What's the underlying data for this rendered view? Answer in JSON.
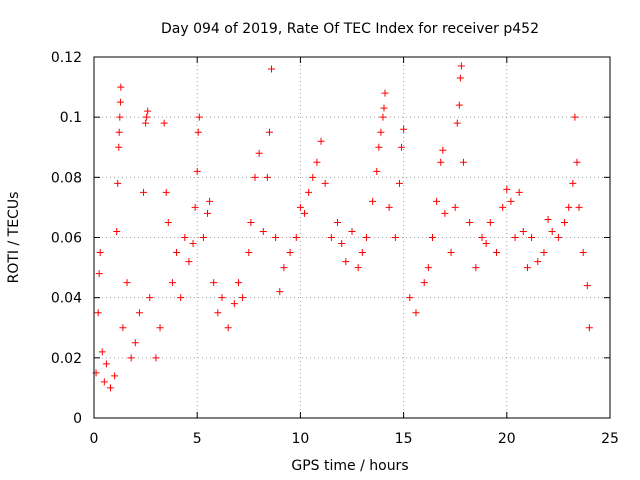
{
  "chart_data": {
    "type": "scatter",
    "title": "Day 094 of 2019, Rate Of TEC Index for receiver p452",
    "xlabel": "GPS time / hours",
    "ylabel": "ROTI / TECUs",
    "xlim": [
      0,
      25
    ],
    "ylim": [
      0,
      0.12
    ],
    "xticks": [
      0,
      5,
      10,
      15,
      20,
      25
    ],
    "xtick_labels": [
      "0",
      "5",
      "10",
      "15",
      "20",
      "25"
    ],
    "yticks": [
      0,
      0.02,
      0.04,
      0.06,
      0.08,
      0.1,
      0.12
    ],
    "ytick_labels": [
      "0",
      "0.02",
      "0.04",
      "0.06",
      "0.08",
      "0.1",
      "0.12"
    ],
    "grid": true,
    "marker": "+",
    "color": "#ff0000",
    "series": [
      {
        "name": "ROTI",
        "points": [
          [
            0.1,
            0.015
          ],
          [
            0.2,
            0.035
          ],
          [
            0.25,
            0.048
          ],
          [
            0.3,
            0.055
          ],
          [
            0.4,
            0.022
          ],
          [
            0.5,
            0.012
          ],
          [
            0.6,
            0.018
          ],
          [
            0.8,
            0.01
          ],
          [
            1.0,
            0.014
          ],
          [
            1.1,
            0.062
          ],
          [
            1.15,
            0.078
          ],
          [
            1.2,
            0.09
          ],
          [
            1.22,
            0.095
          ],
          [
            1.25,
            0.1
          ],
          [
            1.28,
            0.105
          ],
          [
            1.3,
            0.11
          ],
          [
            1.4,
            0.03
          ],
          [
            1.6,
            0.045
          ],
          [
            1.8,
            0.02
          ],
          [
            2.0,
            0.025
          ],
          [
            2.2,
            0.035
          ],
          [
            2.4,
            0.075
          ],
          [
            2.5,
            0.098
          ],
          [
            2.55,
            0.1
          ],
          [
            2.6,
            0.102
          ],
          [
            2.7,
            0.04
          ],
          [
            3.0,
            0.02
          ],
          [
            3.2,
            0.03
          ],
          [
            3.4,
            0.098
          ],
          [
            3.5,
            0.075
          ],
          [
            3.6,
            0.065
          ],
          [
            3.8,
            0.045
          ],
          [
            4.0,
            0.055
          ],
          [
            4.2,
            0.04
          ],
          [
            4.4,
            0.06
          ],
          [
            4.6,
            0.052
          ],
          [
            4.8,
            0.058
          ],
          [
            4.9,
            0.07
          ],
          [
            5.0,
            0.082
          ],
          [
            5.05,
            0.095
          ],
          [
            5.1,
            0.1
          ],
          [
            5.3,
            0.06
          ],
          [
            5.5,
            0.068
          ],
          [
            5.6,
            0.072
          ],
          [
            5.8,
            0.045
          ],
          [
            6.0,
            0.035
          ],
          [
            6.2,
            0.04
          ],
          [
            6.5,
            0.03
          ],
          [
            6.8,
            0.038
          ],
          [
            7.0,
            0.045
          ],
          [
            7.2,
            0.04
          ],
          [
            7.5,
            0.055
          ],
          [
            7.6,
            0.065
          ],
          [
            7.8,
            0.08
          ],
          [
            8.0,
            0.088
          ],
          [
            8.2,
            0.062
          ],
          [
            8.4,
            0.08
          ],
          [
            8.5,
            0.095
          ],
          [
            8.6,
            0.116
          ],
          [
            8.8,
            0.06
          ],
          [
            9.0,
            0.042
          ],
          [
            9.2,
            0.05
          ],
          [
            9.5,
            0.055
          ],
          [
            9.8,
            0.06
          ],
          [
            10.0,
            0.07
          ],
          [
            10.2,
            0.068
          ],
          [
            10.4,
            0.075
          ],
          [
            10.6,
            0.08
          ],
          [
            10.8,
            0.085
          ],
          [
            11.0,
            0.092
          ],
          [
            11.2,
            0.078
          ],
          [
            11.5,
            0.06
          ],
          [
            11.8,
            0.065
          ],
          [
            12.0,
            0.058
          ],
          [
            12.2,
            0.052
          ],
          [
            12.5,
            0.062
          ],
          [
            12.8,
            0.05
          ],
          [
            13.0,
            0.055
          ],
          [
            13.2,
            0.06
          ],
          [
            13.5,
            0.072
          ],
          [
            13.7,
            0.082
          ],
          [
            13.8,
            0.09
          ],
          [
            13.9,
            0.095
          ],
          [
            14.0,
            0.1
          ],
          [
            14.05,
            0.103
          ],
          [
            14.1,
            0.108
          ],
          [
            14.3,
            0.07
          ],
          [
            14.6,
            0.06
          ],
          [
            14.8,
            0.078
          ],
          [
            14.9,
            0.09
          ],
          [
            15.0,
            0.096
          ],
          [
            15.3,
            0.04
          ],
          [
            15.6,
            0.035
          ],
          [
            16.0,
            0.045
          ],
          [
            16.2,
            0.05
          ],
          [
            16.4,
            0.06
          ],
          [
            16.6,
            0.072
          ],
          [
            16.8,
            0.085
          ],
          [
            16.9,
            0.089
          ],
          [
            17.0,
            0.068
          ],
          [
            17.3,
            0.055
          ],
          [
            17.5,
            0.07
          ],
          [
            17.6,
            0.098
          ],
          [
            17.7,
            0.104
          ],
          [
            17.75,
            0.113
          ],
          [
            17.8,
            0.117
          ],
          [
            17.9,
            0.085
          ],
          [
            18.2,
            0.065
          ],
          [
            18.5,
            0.05
          ],
          [
            18.8,
            0.06
          ],
          [
            19.0,
            0.058
          ],
          [
            19.2,
            0.065
          ],
          [
            19.5,
            0.055
          ],
          [
            19.8,
            0.07
          ],
          [
            20.0,
            0.076
          ],
          [
            20.2,
            0.072
          ],
          [
            20.4,
            0.06
          ],
          [
            20.6,
            0.075
          ],
          [
            20.8,
            0.062
          ],
          [
            21.0,
            0.05
          ],
          [
            21.2,
            0.06
          ],
          [
            21.5,
            0.052
          ],
          [
            21.8,
            0.055
          ],
          [
            22.0,
            0.066
          ],
          [
            22.2,
            0.062
          ],
          [
            22.5,
            0.06
          ],
          [
            22.8,
            0.065
          ],
          [
            23.0,
            0.07
          ],
          [
            23.2,
            0.078
          ],
          [
            23.3,
            0.1
          ],
          [
            23.4,
            0.085
          ],
          [
            23.5,
            0.07
          ],
          [
            23.7,
            0.055
          ],
          [
            23.9,
            0.044
          ],
          [
            24.0,
            0.03
          ]
        ]
      }
    ]
  }
}
